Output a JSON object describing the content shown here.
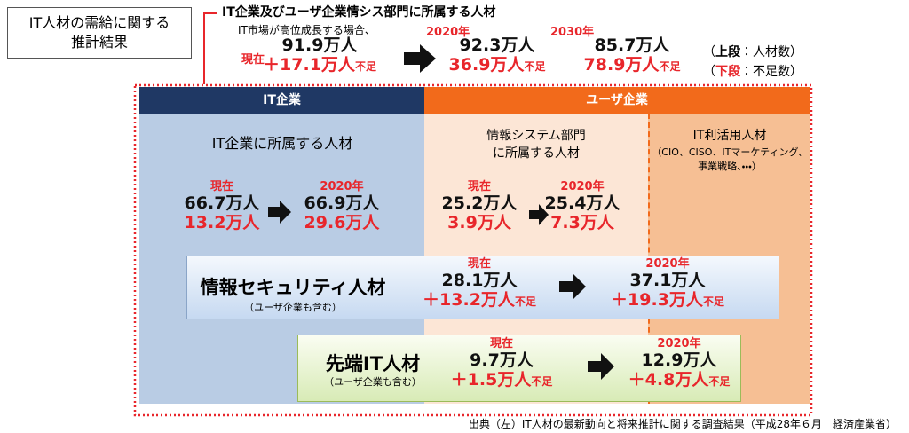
{
  "title_box": {
    "lines": [
      "IT人材の需給に関する",
      "推計結果"
    ]
  },
  "overall": {
    "heading": "IT企業及びユーザ企業情シス部門に所属する人材",
    "condition": "IT市場が高位成長する場合、",
    "columns": [
      {
        "label": "現在",
        "supply": "91.9万人",
        "shortage": "＋17.1万人",
        "shortage_suffix": "不足"
      },
      {
        "label": "2020年",
        "supply": "92.3万人",
        "shortage": "36.9万人",
        "shortage_suffix": "不足"
      },
      {
        "label": "2030年",
        "supply": "85.7万人",
        "shortage": "78.9万人",
        "shortage_suffix": "不足"
      }
    ],
    "legend": [
      {
        "open": "（",
        "key": "上段",
        "text": "：人材数）"
      },
      {
        "open": "（",
        "key": "下段",
        "text": "：不足数）"
      }
    ]
  },
  "headers": {
    "it_company": "IT企業",
    "user_company": "ユーザ企業"
  },
  "panels": [
    {
      "title_lines": [
        "IT企業に所属する人材"
      ],
      "columns": [
        {
          "label": "現在",
          "supply": "66.7万人",
          "shortage": "13.2万人"
        },
        {
          "label": "2020年",
          "supply": "66.9万人",
          "shortage": "29.6万人"
        }
      ]
    },
    {
      "title_lines": [
        "情報システム部門",
        "に所属する人材"
      ],
      "columns": [
        {
          "label": "現在",
          "supply": "25.2万人",
          "shortage": "3.9万人"
        },
        {
          "label": "2020年",
          "supply": "25.4万人",
          "shortage": "7.3万人"
        }
      ]
    },
    {
      "title_lines": [
        "IT利活用人材",
        "（CIO、CISO、ITマーケティング、",
        "事業戦略、・・・）"
      ]
    }
  ],
  "special": [
    {
      "name": "情報セキュリティ人材",
      "note": "（ユーザ企業も含む）",
      "columns": [
        {
          "label": "現在",
          "supply": "28.1万人",
          "shortage": "＋13.2万人",
          "shortage_suffix": "不足"
        },
        {
          "label": "2020年",
          "supply": "37.1万人",
          "shortage": "＋19.3万人",
          "shortage_suffix": "不足"
        }
      ]
    },
    {
      "name": "先端IT人材",
      "note": "（ユーザ企業も含む）",
      "columns": [
        {
          "label": "現在",
          "supply": "9.7万人",
          "shortage": "＋1.5万人",
          "shortage_suffix": "不足"
        },
        {
          "label": "2020年",
          "supply": "12.9万人",
          "shortage": "＋4.8万人",
          "shortage_suffix": "不足"
        }
      ]
    }
  ],
  "source": "出典（左）IT人材の最新動向と将来推計に関する調査結果（平成28年６月　経済産業省）"
}
